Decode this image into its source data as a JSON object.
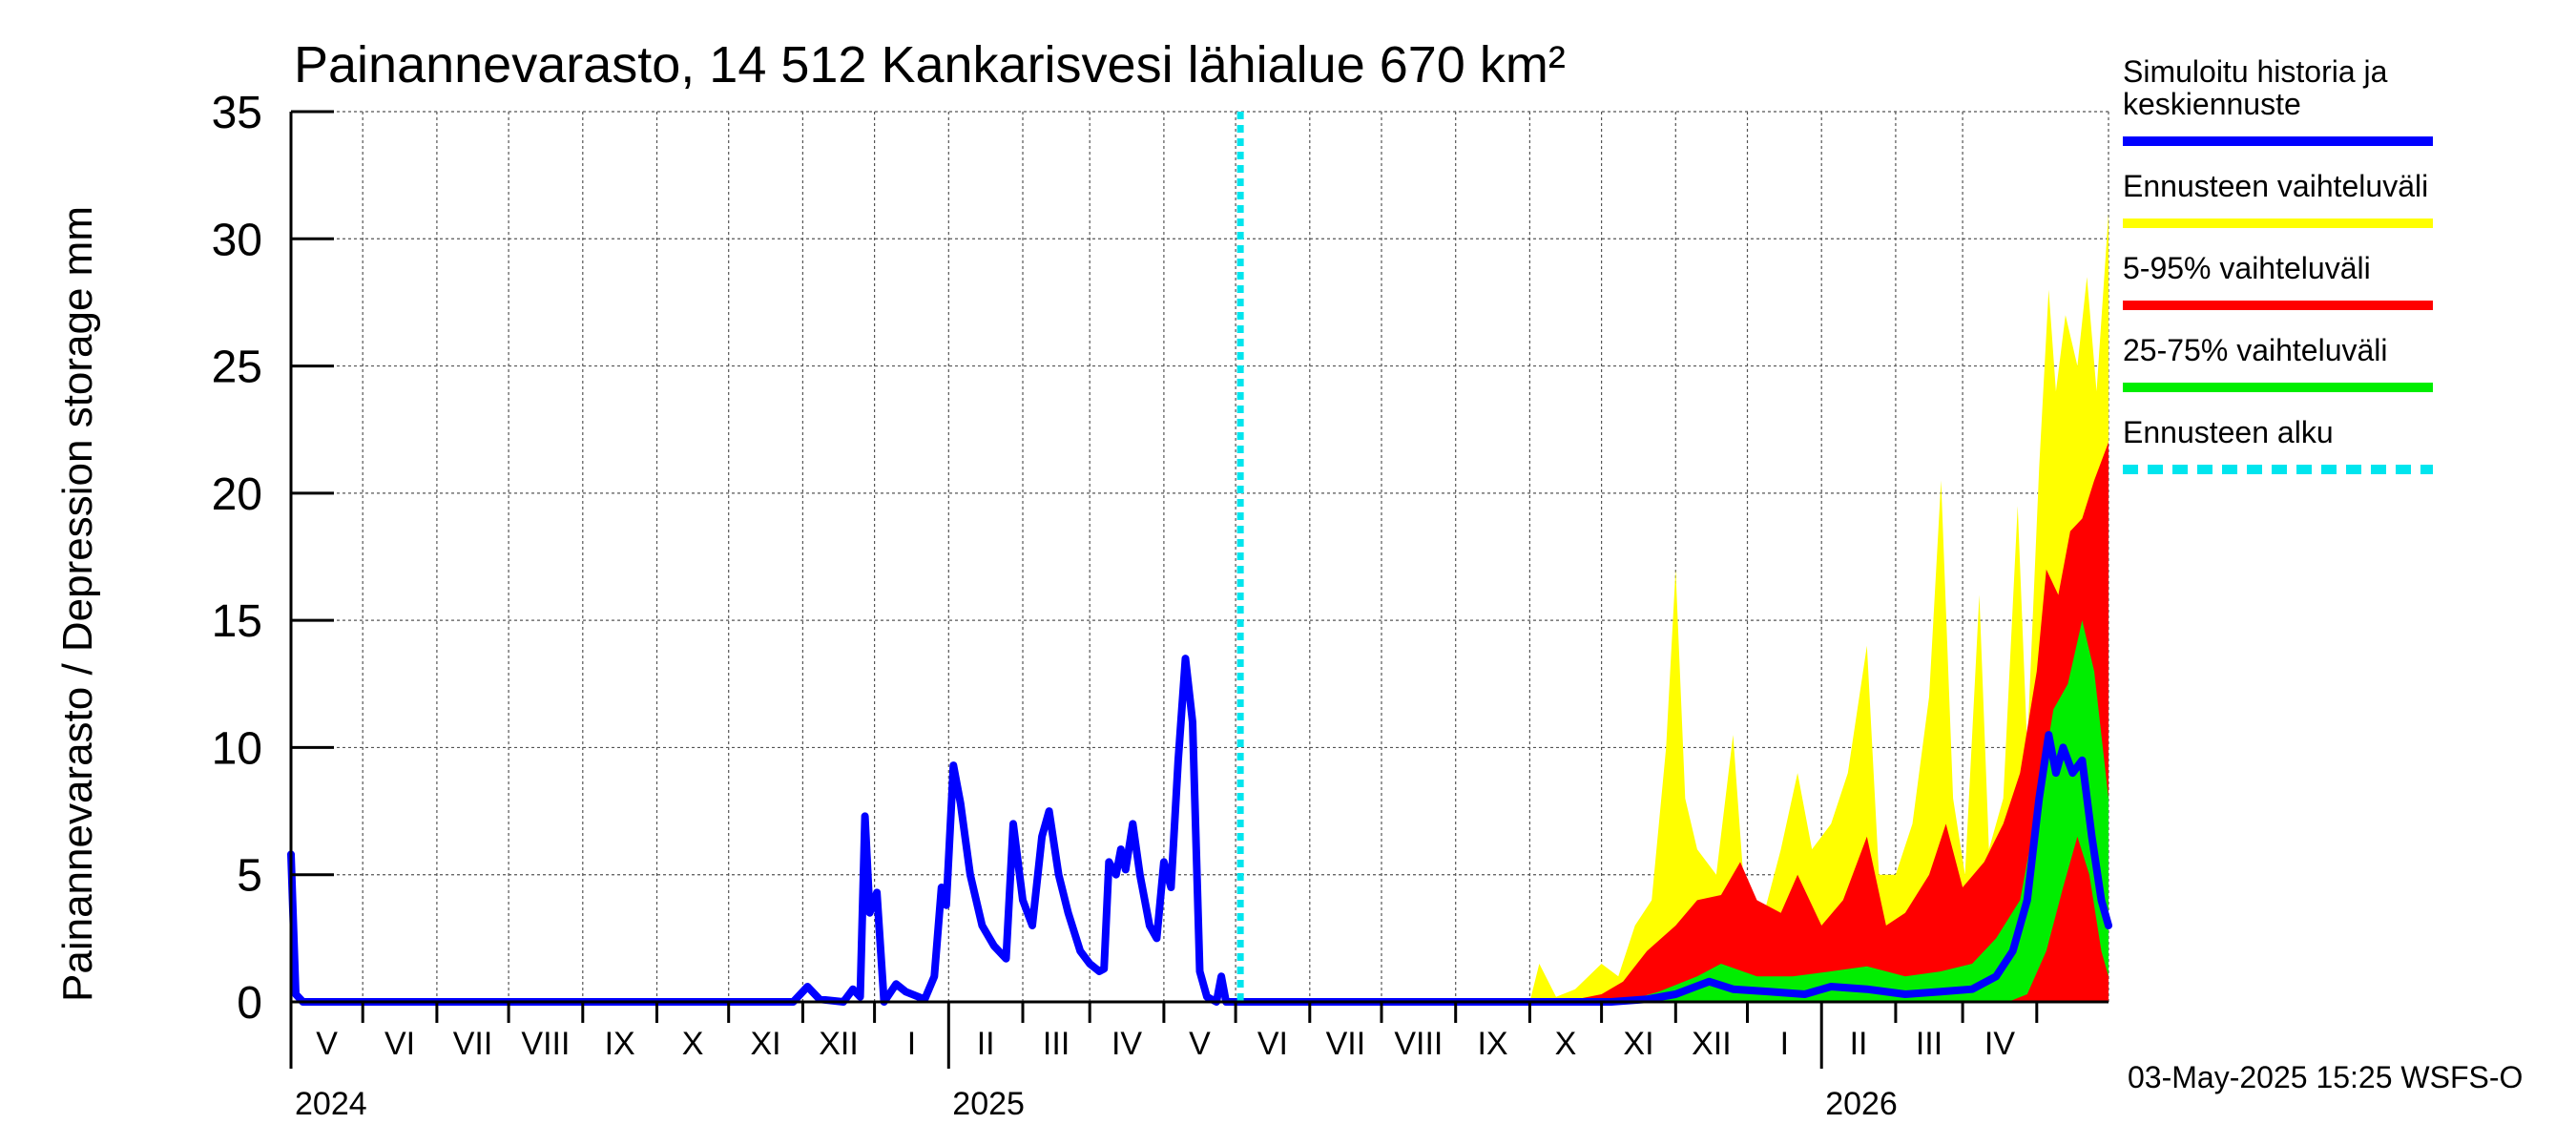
{
  "chart_data": {
    "type": "area",
    "title": "Painannevarasto, 14 512 Kankarisvesi lähialue 670 km²",
    "ylabel": "Painannevarasto / Depression storage    mm",
    "ylim": [
      0,
      35
    ],
    "y_ticks": [
      0,
      5,
      10,
      15,
      20,
      25,
      30,
      35
    ],
    "grid": true,
    "x_start": "2024-04-01",
    "x_end": "2026-05-01",
    "month_labels": [
      "V",
      "VI",
      "VII",
      "VIII",
      "IX",
      "X",
      "XI",
      "XII",
      "I",
      "II",
      "III",
      "IV",
      "V",
      "VI",
      "VII",
      "VIII",
      "IX",
      "X",
      "XI",
      "XII",
      "I",
      "II",
      "III",
      "IV"
    ],
    "year_labels": [
      "2024",
      "2025",
      "2026"
    ],
    "forecast_start": "2025-05-03",
    "legend_position": "right",
    "legend": [
      {
        "label": "Simuloitu historia ja keskiennuste",
        "color": "#0000ff",
        "style": "solid"
      },
      {
        "label": "Ennusteen vaihteluväli",
        "color": "#ffff00",
        "style": "solid"
      },
      {
        "label": "5-95% vaihteluväli",
        "color": "#ff0000",
        "style": "solid"
      },
      {
        "label": "25-75% vaihteluväli",
        "color": "#00ee00",
        "style": "solid"
      },
      {
        "label": "Ennusteen alku",
        "color": "#00e5ee",
        "style": "dashed"
      }
    ],
    "series": [
      {
        "name": "Simuloitu historia ja keskiennuste",
        "color": "#0000ff",
        "points": [
          [
            "2024-04-01",
            5.8
          ],
          [
            "2024-04-03",
            0.3
          ],
          [
            "2024-04-06",
            0
          ],
          [
            "2024-10-28",
            0
          ],
          [
            "2024-11-03",
            0.6
          ],
          [
            "2024-11-08",
            0.1
          ],
          [
            "2024-11-18",
            0
          ],
          [
            "2024-11-22",
            0.5
          ],
          [
            "2024-11-25",
            0.2
          ],
          [
            "2024-11-27",
            7.3
          ],
          [
            "2024-11-29",
            3.5
          ],
          [
            "2024-12-02",
            4.3
          ],
          [
            "2024-12-05",
            0
          ],
          [
            "2024-12-10",
            0.7
          ],
          [
            "2024-12-14",
            0.4
          ],
          [
            "2024-12-22",
            0.1
          ],
          [
            "2024-12-26",
            1.0
          ],
          [
            "2024-12-29",
            4.5
          ],
          [
            "2024-12-31",
            3.8
          ],
          [
            "2025-01-03",
            9.3
          ],
          [
            "2025-01-06",
            7.8
          ],
          [
            "2025-01-10",
            5.0
          ],
          [
            "2025-01-15",
            3.0
          ],
          [
            "2025-01-20",
            2.2
          ],
          [
            "2025-01-25",
            1.7
          ],
          [
            "2025-01-28",
            7.0
          ],
          [
            "2025-02-01",
            4.0
          ],
          [
            "2025-02-05",
            3.0
          ],
          [
            "2025-02-09",
            6.5
          ],
          [
            "2025-02-12",
            7.5
          ],
          [
            "2025-02-16",
            5.0
          ],
          [
            "2025-02-20",
            3.5
          ],
          [
            "2025-02-25",
            2.0
          ],
          [
            "2025-03-01",
            1.5
          ],
          [
            "2025-03-05",
            1.2
          ],
          [
            "2025-03-07",
            1.3
          ],
          [
            "2025-03-09",
            5.5
          ],
          [
            "2025-03-12",
            5.0
          ],
          [
            "2025-03-14",
            6.0
          ],
          [
            "2025-03-16",
            5.2
          ],
          [
            "2025-03-19",
            7.0
          ],
          [
            "2025-03-22",
            5.0
          ],
          [
            "2025-03-26",
            3.0
          ],
          [
            "2025-03-29",
            2.5
          ],
          [
            "2025-04-01",
            5.5
          ],
          [
            "2025-04-04",
            4.5
          ],
          [
            "2025-04-07",
            9.5
          ],
          [
            "2025-04-10",
            13.5
          ],
          [
            "2025-04-13",
            11.0
          ],
          [
            "2025-04-16",
            1.2
          ],
          [
            "2025-04-19",
            0.2
          ],
          [
            "2025-04-23",
            0
          ],
          [
            "2025-04-25",
            1.0
          ],
          [
            "2025-04-27",
            0
          ],
          [
            "2025-05-03",
            0
          ],
          [
            "2025-10-05",
            0
          ],
          [
            "2025-10-20",
            0.1
          ],
          [
            "2025-11-01",
            0.3
          ],
          [
            "2025-11-15",
            0.8
          ],
          [
            "2025-11-25",
            0.5
          ],
          [
            "2025-12-10",
            0.4
          ],
          [
            "2025-12-25",
            0.3
          ],
          [
            "2026-01-05",
            0.6
          ],
          [
            "2026-01-20",
            0.5
          ],
          [
            "2026-02-05",
            0.3
          ],
          [
            "2026-02-20",
            0.4
          ],
          [
            "2026-03-05",
            0.5
          ],
          [
            "2026-03-15",
            1.0
          ],
          [
            "2026-03-22",
            2.0
          ],
          [
            "2026-03-28",
            4.0
          ],
          [
            "2026-04-02",
            8.0
          ],
          [
            "2026-04-06",
            10.5
          ],
          [
            "2026-04-09",
            9.0
          ],
          [
            "2026-04-12",
            10.0
          ],
          [
            "2026-04-16",
            9.0
          ],
          [
            "2026-04-20",
            9.5
          ],
          [
            "2026-04-24",
            6.5
          ],
          [
            "2026-04-28",
            4.0
          ],
          [
            "2026-05-01",
            3.0
          ]
        ]
      }
    ],
    "bands": [
      {
        "name": "Ennusteen vaihteluväli",
        "color": "#ffff00",
        "upper": [
          [
            "2025-05-03",
            0
          ],
          [
            "2025-09-01",
            0
          ],
          [
            "2025-09-05",
            1.5
          ],
          [
            "2025-09-12",
            0.2
          ],
          [
            "2025-09-20",
            0.5
          ],
          [
            "2025-10-01",
            1.5
          ],
          [
            "2025-10-08",
            1.0
          ],
          [
            "2025-10-15",
            3.0
          ],
          [
            "2025-10-22",
            4.0
          ],
          [
            "2025-10-28",
            10.0
          ],
          [
            "2025-11-01",
            17.0
          ],
          [
            "2025-11-05",
            8.0
          ],
          [
            "2025-11-10",
            6.0
          ],
          [
            "2025-11-18",
            5.0
          ],
          [
            "2025-11-25",
            10.5
          ],
          [
            "2025-11-30",
            4.0
          ],
          [
            "2025-12-08",
            3.5
          ],
          [
            "2025-12-15",
            6.0
          ],
          [
            "2025-12-22",
            9.0
          ],
          [
            "2025-12-28",
            6.0
          ],
          [
            "2026-01-05",
            7.0
          ],
          [
            "2026-01-12",
            9.0
          ],
          [
            "2026-01-20",
            14.0
          ],
          [
            "2026-01-25",
            5.0
          ],
          [
            "2026-02-01",
            5.0
          ],
          [
            "2026-02-08",
            7.0
          ],
          [
            "2026-02-15",
            12.0
          ],
          [
            "2026-02-20",
            20.5
          ],
          [
            "2026-02-25",
            8.0
          ],
          [
            "2026-03-02",
            5.0
          ],
          [
            "2026-03-08",
            16.0
          ],
          [
            "2026-03-12",
            6.0
          ],
          [
            "2026-03-18",
            8.0
          ],
          [
            "2026-03-24",
            19.5
          ],
          [
            "2026-03-28",
            10.0
          ],
          [
            "2026-04-02",
            21.0
          ],
          [
            "2026-04-06",
            28.0
          ],
          [
            "2026-04-09",
            24.0
          ],
          [
            "2026-04-13",
            27.0
          ],
          [
            "2026-04-18",
            25.0
          ],
          [
            "2026-04-22",
            28.5
          ],
          [
            "2026-04-26",
            24.0
          ],
          [
            "2026-05-01",
            31.0
          ]
        ],
        "lower": [
          [
            "2025-05-03",
            0
          ],
          [
            "2026-05-01",
            0
          ]
        ]
      },
      {
        "name": "5-95% vaihteluväli",
        "color": "#ff0000",
        "upper": [
          [
            "2025-05-03",
            0
          ],
          [
            "2025-09-15",
            0
          ],
          [
            "2025-10-01",
            0.3
          ],
          [
            "2025-10-10",
            0.8
          ],
          [
            "2025-10-20",
            2.0
          ],
          [
            "2025-11-01",
            3.0
          ],
          [
            "2025-11-10",
            4.0
          ],
          [
            "2025-11-20",
            4.2
          ],
          [
            "2025-11-28",
            5.5
          ],
          [
            "2025-12-05",
            4.0
          ],
          [
            "2025-12-15",
            3.5
          ],
          [
            "2025-12-22",
            5.0
          ],
          [
            "2026-01-01",
            3.0
          ],
          [
            "2026-01-10",
            4.0
          ],
          [
            "2026-01-20",
            6.5
          ],
          [
            "2026-01-28",
            3.0
          ],
          [
            "2026-02-05",
            3.5
          ],
          [
            "2026-02-15",
            5.0
          ],
          [
            "2026-02-22",
            7.0
          ],
          [
            "2026-03-01",
            4.5
          ],
          [
            "2026-03-10",
            5.5
          ],
          [
            "2026-03-18",
            7.0
          ],
          [
            "2026-03-25",
            9.0
          ],
          [
            "2026-04-01",
            13.0
          ],
          [
            "2026-04-05",
            17.0
          ],
          [
            "2026-04-10",
            16.0
          ],
          [
            "2026-04-15",
            18.5
          ],
          [
            "2026-04-20",
            19.0
          ],
          [
            "2026-04-25",
            20.5
          ],
          [
            "2026-05-01",
            22.0
          ]
        ],
        "lower": [
          [
            "2025-05-03",
            0
          ],
          [
            "2026-05-01",
            0
          ]
        ]
      },
      {
        "name": "25-75% vaihteluväli",
        "color": "#00ee00",
        "upper": [
          [
            "2025-05-03",
            0
          ],
          [
            "2025-10-10",
            0
          ],
          [
            "2025-10-25",
            0.4
          ],
          [
            "2025-11-10",
            1.0
          ],
          [
            "2025-11-20",
            1.5
          ],
          [
            "2025-12-05",
            1.0
          ],
          [
            "2025-12-20",
            1.0
          ],
          [
            "2026-01-05",
            1.2
          ],
          [
            "2026-01-20",
            1.4
          ],
          [
            "2026-02-05",
            1.0
          ],
          [
            "2026-02-20",
            1.2
          ],
          [
            "2026-03-05",
            1.5
          ],
          [
            "2026-03-15",
            2.5
          ],
          [
            "2026-03-25",
            4.0
          ],
          [
            "2026-04-01",
            7.5
          ],
          [
            "2026-04-08",
            11.5
          ],
          [
            "2026-04-14",
            12.5
          ],
          [
            "2026-04-20",
            15.0
          ],
          [
            "2026-04-25",
            13.0
          ],
          [
            "2026-05-01",
            8.0
          ]
        ],
        "lower": [
          [
            "2025-05-03",
            0
          ],
          [
            "2026-03-20",
            0
          ],
          [
            "2026-03-28",
            0.3
          ],
          [
            "2026-04-05",
            2.0
          ],
          [
            "2026-04-12",
            4.5
          ],
          [
            "2026-04-18",
            6.5
          ],
          [
            "2026-04-23",
            5.0
          ],
          [
            "2026-04-28",
            2.0
          ],
          [
            "2026-05-01",
            1.0
          ]
        ]
      }
    ]
  },
  "timestamp": "03-May-2025 15:25 WSFS-O"
}
